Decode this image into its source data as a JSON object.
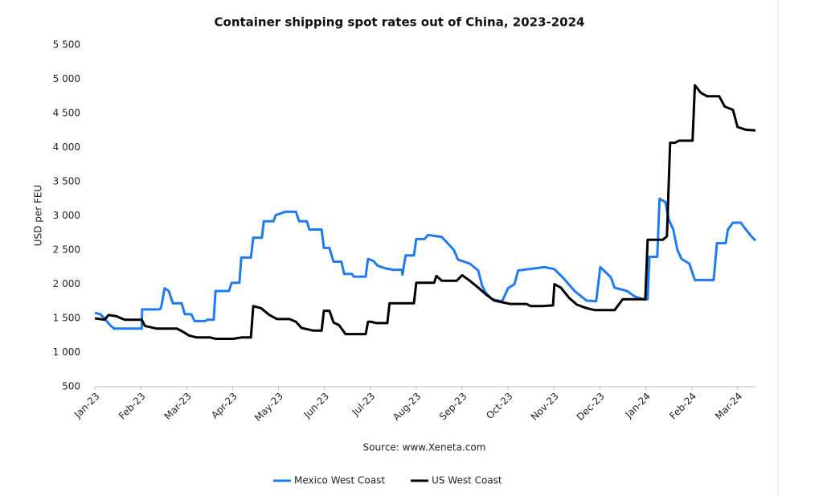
{
  "chart_data": {
    "type": "line",
    "title": "Container shipping spot rates out of China, 2023-2024",
    "y_label": "USD per FEU",
    "source": "Source: www.Xeneta.com",
    "xlim": [
      0,
      14.39
    ],
    "xticks": [
      {
        "value": 0,
        "label": "Jan-23"
      },
      {
        "value": 1,
        "label": "Feb-23"
      },
      {
        "value": 2,
        "label": "Mar-23"
      },
      {
        "value": 3,
        "label": "Apr-23"
      },
      {
        "value": 4,
        "label": "May-23"
      },
      {
        "value": 5,
        "label": "Jun-23"
      },
      {
        "value": 6,
        "label": "Jul-23"
      },
      {
        "value": 7,
        "label": "Aug-23"
      },
      {
        "value": 8,
        "label": "Sep-23"
      },
      {
        "value": 9,
        "label": "Oct-23"
      },
      {
        "value": 10,
        "label": "Nov-23"
      },
      {
        "value": 11,
        "label": "Dec-23"
      },
      {
        "value": 12,
        "label": "Jan-24"
      },
      {
        "value": 13,
        "label": "Feb-24"
      },
      {
        "value": 14,
        "label": "Mar-24"
      }
    ],
    "ylim": [
      500,
      5500
    ],
    "yticks": [
      500,
      {
        "value": 1000,
        "label": "1 000"
      },
      {
        "value": 1500,
        "label": "1 500"
      },
      {
        "value": 2000,
        "label": "2 000"
      },
      {
        "value": 2500,
        "label": "2 500"
      },
      {
        "value": 3000,
        "label": "3 000"
      },
      {
        "value": 3500,
        "label": "3 500"
      },
      {
        "value": 4000,
        "label": "4 000"
      },
      {
        "value": 4500,
        "label": "4 500"
      },
      {
        "value": 5000,
        "label": "5 000"
      },
      {
        "value": 5500,
        "label": "5 500"
      }
    ],
    "grid": false,
    "legend": "bottom",
    "series": [
      {
        "name": "Mexico West Coast",
        "color": "#1f7bef",
        "x": [
          0.0,
          0.12,
          0.21,
          0.33,
          0.42,
          1.02,
          1.03,
          1.4,
          1.44,
          1.52,
          1.61,
          1.7,
          1.89,
          1.96,
          2.1,
          2.17,
          2.4,
          2.45,
          2.59,
          2.63,
          2.92,
          2.98,
          3.15,
          3.19,
          3.4,
          3.45,
          3.64,
          3.68,
          3.89,
          3.94,
          4.15,
          4.38,
          4.45,
          4.62,
          4.67,
          4.94,
          4.99,
          5.11,
          5.2,
          5.37,
          5.43,
          5.6,
          5.64,
          5.9,
          5.95,
          6.07,
          6.16,
          6.34,
          6.51,
          6.69,
          6.7,
          6.77,
          6.95,
          7.0,
          7.18,
          7.26,
          7.56,
          7.74,
          7.82,
          7.91,
          8.17,
          8.35,
          8.44,
          8.52,
          8.65,
          8.87,
          9.0,
          9.14,
          9.22,
          9.8,
          10.01,
          10.19,
          10.45,
          10.71,
          10.92,
          11.01,
          11.24,
          11.32,
          11.59,
          11.76,
          11.94,
          12.04,
          12.08,
          12.25,
          12.3,
          12.43,
          12.5,
          12.6,
          12.69,
          12.78,
          12.95,
          13.07,
          13.48,
          13.55,
          13.74,
          13.79,
          13.9,
          14.07,
          14.18,
          14.3,
          14.39
        ],
        "values": [
          1580,
          1560,
          1500,
          1400,
          1350,
          1350,
          1630,
          1630,
          1650,
          1940,
          1900,
          1720,
          1720,
          1560,
          1560,
          1460,
          1460,
          1480,
          1480,
          1900,
          1900,
          2020,
          2020,
          2390,
          2390,
          2680,
          2680,
          2920,
          2920,
          3010,
          3060,
          3060,
          2920,
          2920,
          2800,
          2800,
          2530,
          2530,
          2330,
          2330,
          2150,
          2150,
          2110,
          2110,
          2370,
          2340,
          2270,
          2230,
          2210,
          2210,
          2140,
          2420,
          2420,
          2660,
          2660,
          2720,
          2690,
          2560,
          2500,
          2360,
          2300,
          2200,
          1970,
          1870,
          1780,
          1750,
          1940,
          2000,
          2200,
          2250,
          2220,
          2100,
          1900,
          1760,
          1750,
          2250,
          2100,
          1950,
          1900,
          1820,
          1780,
          1780,
          2400,
          2400,
          3250,
          3200,
          2950,
          2800,
          2500,
          2370,
          2300,
          2060,
          2060,
          2600,
          2600,
          2800,
          2900,
          2900,
          2800,
          2700,
          2640
        ]
      },
      {
        "name": "US West Coast",
        "color": "#000000",
        "x": [
          0.0,
          0.21,
          0.3,
          0.47,
          0.65,
          1.02,
          1.09,
          1.35,
          1.79,
          1.93,
          2.05,
          2.22,
          2.52,
          2.63,
          3.01,
          3.19,
          3.4,
          3.45,
          3.62,
          3.8,
          3.97,
          4.24,
          4.38,
          4.5,
          4.76,
          4.94,
          4.99,
          5.11,
          5.2,
          5.32,
          5.46,
          5.9,
          5.95,
          6.02,
          6.13,
          6.37,
          6.42,
          6.95,
          7.0,
          7.39,
          7.44,
          7.56,
          7.88,
          8.0,
          8.17,
          8.35,
          8.52,
          8.7,
          9.05,
          9.4,
          9.49,
          9.75,
          9.98,
          10.01,
          10.15,
          10.33,
          10.5,
          10.71,
          10.89,
          11.32,
          11.5,
          11.99,
          12.04,
          12.37,
          12.46,
          12.53,
          12.64,
          12.72,
          13.02,
          13.07,
          13.2,
          13.34,
          13.6,
          13.72,
          13.9,
          14.0,
          14.18,
          14.39
        ],
        "values": [
          1500,
          1480,
          1550,
          1530,
          1480,
          1480,
          1390,
          1350,
          1350,
          1300,
          1250,
          1220,
          1220,
          1200,
          1200,
          1220,
          1220,
          1680,
          1650,
          1550,
          1490,
          1490,
          1450,
          1360,
          1320,
          1320,
          1610,
          1610,
          1440,
          1400,
          1270,
          1270,
          1450,
          1450,
          1430,
          1430,
          1720,
          1720,
          2020,
          2020,
          2120,
          2050,
          2050,
          2130,
          2050,
          1950,
          1850,
          1760,
          1710,
          1710,
          1680,
          1680,
          1690,
          2000,
          1950,
          1800,
          1700,
          1650,
          1620,
          1620,
          1780,
          1780,
          2650,
          2650,
          2700,
          4070,
          4070,
          4100,
          4100,
          4910,
          4800,
          4750,
          4750,
          4600,
          4550,
          4300,
          4260,
          4250
        ]
      }
    ]
  }
}
